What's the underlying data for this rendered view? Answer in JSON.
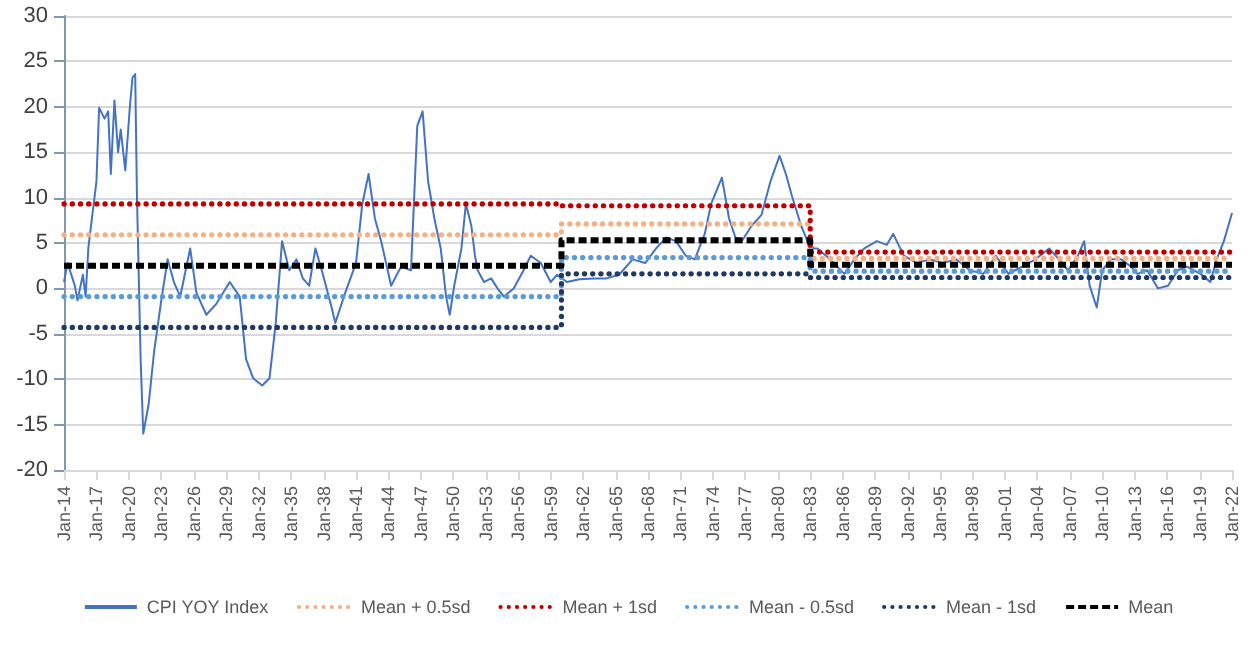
{
  "chart_data": {
    "type": "line",
    "xlim": [
      "1914-01",
      "2022-01"
    ],
    "ylim": [
      -20,
      30
    ],
    "yticks": [
      -20,
      -15,
      -10,
      -5,
      0,
      5,
      10,
      15,
      20,
      25,
      30
    ],
    "xticks": [
      {
        "value": "1914-01",
        "label": "Jan-14"
      },
      {
        "value": "1917-01",
        "label": "Jan-17"
      },
      {
        "value": "1920-01",
        "label": "Jan-20"
      },
      {
        "value": "1923-01",
        "label": "Jan-23"
      },
      {
        "value": "1926-01",
        "label": "Jan-26"
      },
      {
        "value": "1929-01",
        "label": "Jan-29"
      },
      {
        "value": "1932-01",
        "label": "Jan-32"
      },
      {
        "value": "1935-01",
        "label": "Jan-35"
      },
      {
        "value": "1938-01",
        "label": "Jan-38"
      },
      {
        "value": "1941-01",
        "label": "Jan-41"
      },
      {
        "value": "1944-01",
        "label": "Jan-44"
      },
      {
        "value": "1947-01",
        "label": "Jan-47"
      },
      {
        "value": "1950-01",
        "label": "Jan-50"
      },
      {
        "value": "1953-01",
        "label": "Jan-53"
      },
      {
        "value": "1956-01",
        "label": "Jan-56"
      },
      {
        "value": "1959-01",
        "label": "Jan-59"
      },
      {
        "value": "1962-01",
        "label": "Jan-62"
      },
      {
        "value": "1965-01",
        "label": "Jan-65"
      },
      {
        "value": "1968-01",
        "label": "Jan-68"
      },
      {
        "value": "1971-01",
        "label": "Jan-71"
      },
      {
        "value": "1974-01",
        "label": "Jan-74"
      },
      {
        "value": "1977-01",
        "label": "Jan-77"
      },
      {
        "value": "1980-01",
        "label": "Jan-80"
      },
      {
        "value": "1983-01",
        "label": "Jan-83"
      },
      {
        "value": "1986-01",
        "label": "Jan-86"
      },
      {
        "value": "1989-01",
        "label": "Jan-89"
      },
      {
        "value": "1992-01",
        "label": "Jan-92"
      },
      {
        "value": "1995-01",
        "label": "Jan-95"
      },
      {
        "value": "1998-01",
        "label": "Jan-98"
      },
      {
        "value": "2001-01",
        "label": "Jan-01"
      },
      {
        "value": "2004-01",
        "label": "Jan-04"
      },
      {
        "value": "2007-01",
        "label": "Jan-07"
      },
      {
        "value": "2010-01",
        "label": "Jan-10"
      },
      {
        "value": "2013-01",
        "label": "Jan-13"
      },
      {
        "value": "2016-01",
        "label": "Jan-16"
      },
      {
        "value": "2019-01",
        "label": "Jan-19"
      },
      {
        "value": "2022-01",
        "label": "Jan-22"
      }
    ],
    "grid": "y",
    "legend": "bottom",
    "marker": "none",
    "series": [
      {
        "name": "CPI YOY Index",
        "color": "#4472c4",
        "line_style": "solid",
        "x": [
          "1914-01",
          "1914-05",
          "1915-01",
          "1915-04",
          "1915-10",
          "1916-01",
          "1916-04",
          "1916-08",
          "1917-01",
          "1917-04",
          "1917-10",
          "1918-02",
          "1918-05",
          "1918-09",
          "1919-01",
          "1919-04",
          "1919-09",
          "1920-02",
          "1920-05",
          "1920-08",
          "1920-10",
          "1921-02",
          "1921-05",
          "1921-11",
          "1922-05",
          "1923-01",
          "1923-08",
          "1924-03",
          "1924-10",
          "1925-09",
          "1926-04",
          "1927-03",
          "1928-02",
          "1929-05",
          "1930-04",
          "1930-11",
          "1931-07",
          "1932-05",
          "1933-01",
          "1933-08",
          "1934-03",
          "1934-11",
          "1935-07",
          "1936-02",
          "1936-09",
          "1937-04",
          "1937-11",
          "1938-10",
          "1939-02",
          "1940-01",
          "1941-01",
          "1941-08",
          "1942-03",
          "1942-10",
          "1943-05",
          "1944-04",
          "1945-03",
          "1946-02",
          "1946-09",
          "1947-03",
          "1947-09",
          "1948-04",
          "1948-11",
          "1949-05",
          "1949-09",
          "1950-02",
          "1950-10",
          "1951-03",
          "1951-09",
          "1952-01",
          "1952-04",
          "1952-11",
          "1953-07",
          "1954-02",
          "1954-09",
          "1955-08",
          "1956-07",
          "1957-03",
          "1958-02",
          "1959-01",
          "1959-08",
          "1960-07",
          "1961-09",
          "1963-01",
          "1964-03",
          "1965-05",
          "1966-08",
          "1967-10",
          "1968-10",
          "1969-09",
          "1970-08",
          "1971-07",
          "1972-05",
          "1973-04",
          "1973-11",
          "1974-11",
          "1975-07",
          "1976-02",
          "1976-09",
          "1977-08",
          "1978-07",
          "1979-05",
          "1980-03",
          "1980-10",
          "1981-05",
          "1982-03",
          "1982-10",
          "1983-05",
          "1983-09",
          "1984-11",
          "1986-03",
          "1987-02",
          "1988-01",
          "1989-03",
          "1990-02",
          "1990-09",
          "1991-09",
          "1992-11",
          "1994-02",
          "1995-04",
          "1996-07",
          "1997-10",
          "1999-01",
          "2000-03",
          "2001-05",
          "2002-08",
          "2003-11",
          "2005-02",
          "2006-01",
          "2006-11",
          "2007-10",
          "2008-05",
          "2008-11",
          "2009-07",
          "2010-01",
          "2010-11",
          "2011-10",
          "2012-09",
          "2013-04",
          "2014-03",
          "2015-03",
          "2016-02",
          "2017-01",
          "2017-11",
          "2019-02",
          "2020-01",
          "2020-08",
          "2021-04",
          "2022-01"
        ],
        "values": [
          0.7,
          2.8,
          0.3,
          -1.3,
          1.5,
          -0.9,
          4.4,
          7.7,
          11.8,
          19.9,
          18.7,
          19.5,
          12.6,
          20.7,
          15,
          17.5,
          13,
          19.9,
          23.2,
          23.6,
          10,
          -7.8,
          -16,
          -12.7,
          -7,
          -1.3,
          3.2,
          0.7,
          -0.9,
          4.4,
          -0.5,
          -2.9,
          -1.7,
          0.7,
          -0.9,
          -7.8,
          -9.9,
          -10.7,
          -9.9,
          -3.8,
          5.2,
          2,
          3.2,
          1.1,
          0.3,
          4.4,
          2,
          -2.1,
          -3.8,
          -0.5,
          2.8,
          9.3,
          12.6,
          7.7,
          5.2,
          0.3,
          2.4,
          2,
          17.9,
          19.5,
          11.8,
          7.7,
          4.4,
          -0.9,
          -2.9,
          0.3,
          4.4,
          9.3,
          6.9,
          3.6,
          2,
          0.7,
          1.1,
          0,
          -0.9,
          0,
          2,
          3.6,
          2.8,
          0.7,
          1.5,
          0.7,
          1,
          1.1,
          1.1,
          1.5,
          3.2,
          2.8,
          4.4,
          5.6,
          5.2,
          3.6,
          3.2,
          6,
          9.3,
          12.2,
          7.7,
          5.6,
          5.2,
          6.9,
          8.1,
          11.8,
          14.6,
          12.6,
          10.1,
          6.9,
          5.2,
          4.4,
          4.4,
          3.2,
          1.6,
          3.2,
          4.4,
          5.2,
          4.8,
          6,
          3.6,
          2.8,
          3.2,
          2.8,
          3.2,
          2,
          1.6,
          3.6,
          1.6,
          2.4,
          3.2,
          4.4,
          3.2,
          2,
          3.6,
          5.2,
          0.3,
          -2.1,
          2,
          3.2,
          3.2,
          2.4,
          1.6,
          2,
          0,
          0.3,
          2,
          2.4,
          1.6,
          0.7,
          3.2,
          5.2,
          8.3
        ]
      },
      {
        "name": "Mean + 0.5sd",
        "color": "#f4b183",
        "line_style": "dotted",
        "x": [
          "1914-01",
          "1960-01",
          "1960-01",
          "1983-01",
          "1983-01",
          "2022-01"
        ],
        "values": [
          5.9,
          5.9,
          7.1,
          7.1,
          3.3,
          3.3
        ]
      },
      {
        "name": "Mean + 1sd",
        "color": "#c00000",
        "line_style": "dotted",
        "x": [
          "1914-01",
          "1960-01",
          "1960-01",
          "1983-01",
          "1983-01",
          "2022-01"
        ],
        "values": [
          9.3,
          9.3,
          9.1,
          9.1,
          4.0,
          4.0
        ]
      },
      {
        "name": "Mean - 0.5sd",
        "color": "#5b9bd5",
        "line_style": "dotted",
        "x": [
          "1914-01",
          "1960-01",
          "1960-01",
          "1983-01",
          "1983-01",
          "2022-01"
        ],
        "values": [
          -0.9,
          -0.9,
          3.4,
          3.4,
          1.9,
          1.9
        ]
      },
      {
        "name": "Mean - 1sd",
        "color": "#1f3864",
        "line_style": "dotted",
        "x": [
          "1914-01",
          "1960-01",
          "1960-01",
          "1983-01",
          "1983-01",
          "2022-01"
        ],
        "values": [
          -4.3,
          -4.3,
          1.6,
          1.6,
          1.2,
          1.2
        ]
      },
      {
        "name": "Mean",
        "color": "#000000",
        "line_style": "dashed",
        "x": [
          "1914-01",
          "1960-01",
          "1960-01",
          "1983-01",
          "1983-01",
          "2022-01"
        ],
        "values": [
          2.5,
          2.5,
          5.3,
          5.3,
          2.6,
          2.6
        ]
      }
    ]
  }
}
